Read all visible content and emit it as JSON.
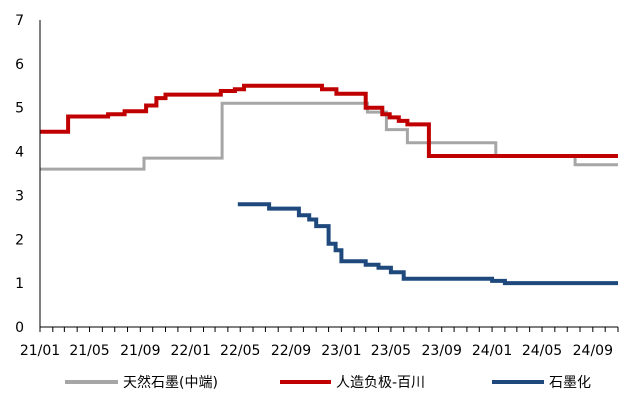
{
  "chart_data": {
    "type": "line",
    "ylim": [
      0,
      7
    ],
    "yticks": [
      0,
      1,
      2,
      3,
      4,
      5,
      6,
      7
    ],
    "x_range": [
      "2021-01-01",
      "2024-11-01"
    ],
    "xticks": [
      "21/01",
      "21/05",
      "21/09",
      "22/01",
      "22/05",
      "22/09",
      "23/01",
      "23/05",
      "23/09",
      "24/01",
      "24/05",
      "24/09"
    ],
    "xtick_dates": [
      "2021-01-01",
      "2021-05-01",
      "2021-09-01",
      "2022-01-01",
      "2022-05-01",
      "2022-09-01",
      "2023-01-01",
      "2023-05-01",
      "2023-09-01",
      "2024-01-01",
      "2024-05-01",
      "2024-09-01"
    ],
    "grid": false,
    "legend_position": "bottom",
    "step": true,
    "series": [
      {
        "name": "天然石墨(中端)",
        "color": "#a6a6a6",
        "points": [
          [
            "2021-01-01",
            3.6
          ],
          [
            "2021-09-10",
            3.85
          ],
          [
            "2022-03-18",
            5.1
          ],
          [
            "2023-03-05",
            4.9
          ],
          [
            "2023-04-20",
            4.5
          ],
          [
            "2023-06-10",
            4.2
          ],
          [
            "2024-01-10",
            3.9
          ],
          [
            "2024-07-20",
            3.7
          ],
          [
            "2024-11-01",
            3.7
          ]
        ]
      },
      {
        "name": "人造负极-百川",
        "color": "#c00000",
        "points": [
          [
            "2021-01-01",
            4.45
          ],
          [
            "2021-03-10",
            4.8
          ],
          [
            "2021-06-15",
            4.85
          ],
          [
            "2021-07-25",
            4.92
          ],
          [
            "2021-09-15",
            5.05
          ],
          [
            "2021-10-10",
            5.22
          ],
          [
            "2021-11-01",
            5.3
          ],
          [
            "2022-03-15",
            5.38
          ],
          [
            "2022-04-18",
            5.42
          ],
          [
            "2022-05-10",
            5.5
          ],
          [
            "2022-11-15",
            5.42
          ],
          [
            "2022-12-20",
            5.32
          ],
          [
            "2023-03-01",
            5.0
          ],
          [
            "2023-04-10",
            4.85
          ],
          [
            "2023-04-28",
            4.78
          ],
          [
            "2023-05-20",
            4.7
          ],
          [
            "2023-06-10",
            4.62
          ],
          [
            "2023-08-01",
            3.9
          ],
          [
            "2024-11-01",
            3.9
          ]
        ]
      },
      {
        "name": "石墨化",
        "color": "#1f497d",
        "points": [
          [
            "2022-04-25",
            2.8
          ],
          [
            "2022-07-10",
            2.7
          ],
          [
            "2022-09-20",
            2.55
          ],
          [
            "2022-10-15",
            2.45
          ],
          [
            "2022-11-01",
            2.3
          ],
          [
            "2022-12-01",
            1.9
          ],
          [
            "2022-12-18",
            1.75
          ],
          [
            "2023-01-01",
            1.5
          ],
          [
            "2023-03-01",
            1.42
          ],
          [
            "2023-04-01",
            1.35
          ],
          [
            "2023-05-01",
            1.25
          ],
          [
            "2023-06-01",
            1.1
          ],
          [
            "2024-01-01",
            1.05
          ],
          [
            "2024-02-01",
            1.0
          ],
          [
            "2024-11-01",
            1.0
          ]
        ]
      }
    ]
  }
}
